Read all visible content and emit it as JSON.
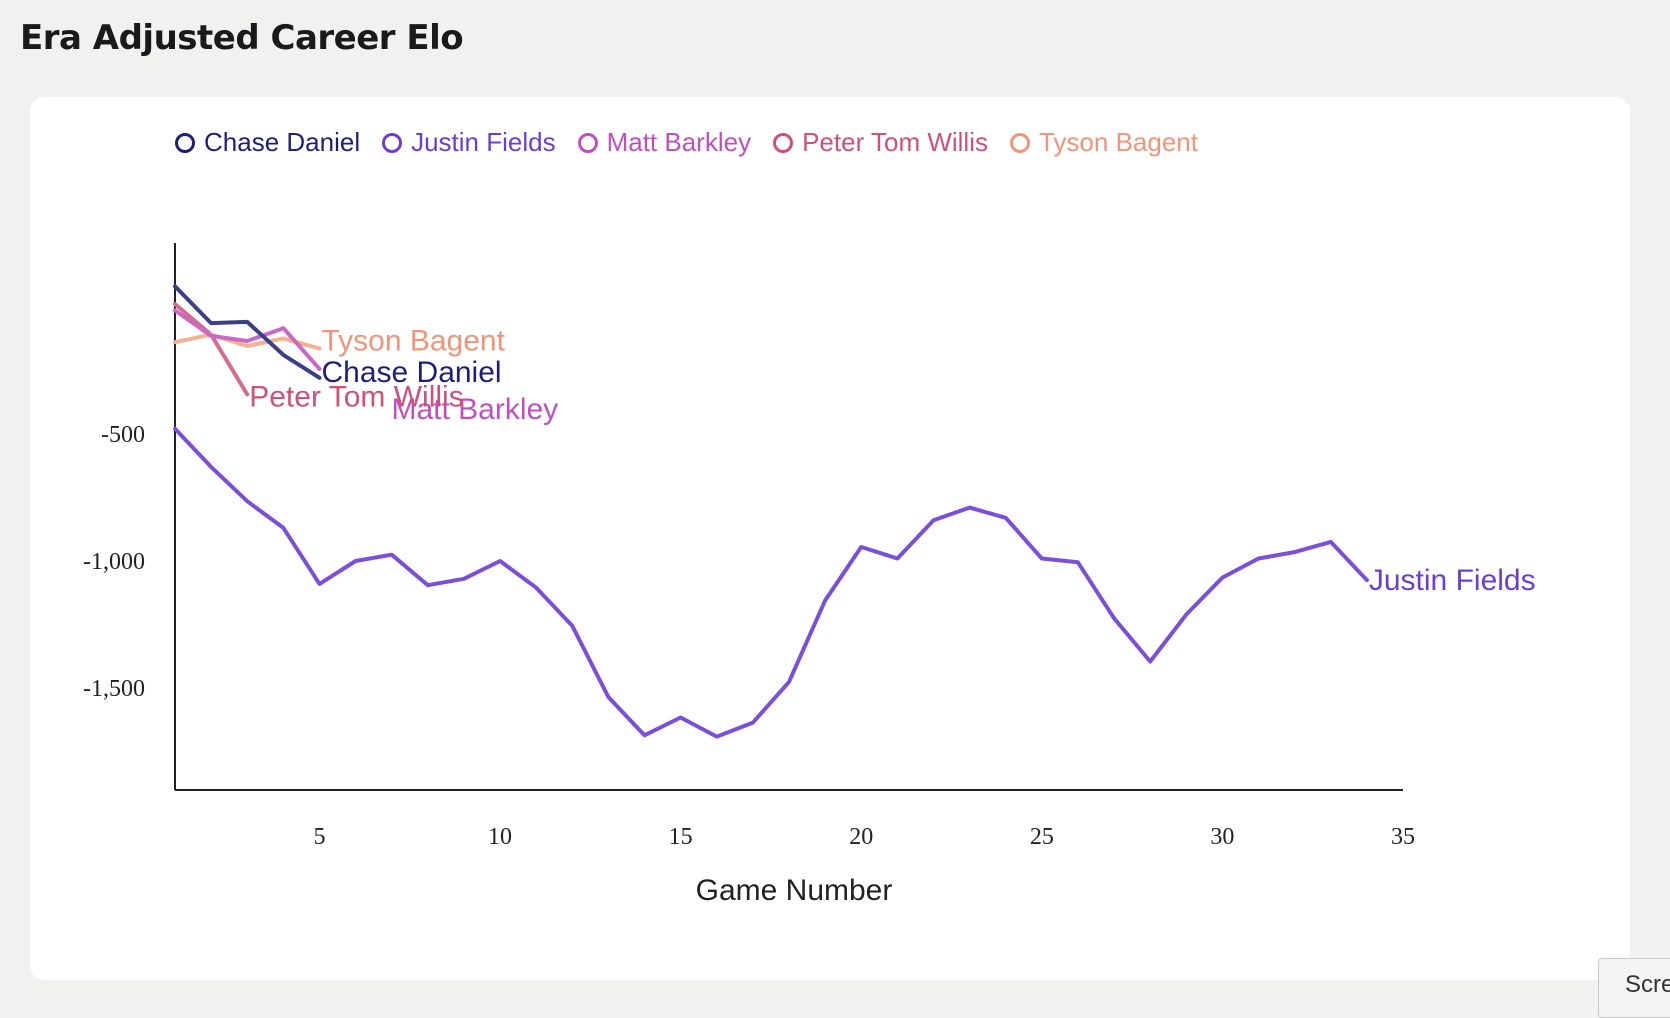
{
  "title": "Era Adjusted Career Elo",
  "corner_tab": {
    "label": "Scre"
  },
  "legend": [
    {
      "name": "Chase Daniel",
      "color": "#1f1f7a"
    },
    {
      "name": "Justin Fields",
      "color": "#6a3fd0"
    },
    {
      "name": "Matt Barkley",
      "color": "#c04fc0"
    },
    {
      "name": "Peter Tom Willis",
      "color": "#d0507a"
    },
    {
      "name": "Tyson Bagent",
      "color": "#f0957a"
    }
  ],
  "chart_data": {
    "type": "line",
    "title": "Era Adjusted Career Elo",
    "xlabel": "Game Number",
    "ylabel": "",
    "xlim": [
      1,
      35
    ],
    "ylim": [
      -1900,
      250
    ],
    "x_ticks": [
      5,
      10,
      15,
      20,
      25,
      30,
      35
    ],
    "x_tick_labels": [
      "5",
      "10",
      "15",
      "20",
      "25",
      "30",
      "35"
    ],
    "y_ticks": [
      -500,
      -1000,
      -1500
    ],
    "y_tick_labels": [
      "-500",
      "-1,000",
      "-1,500"
    ],
    "grid": false,
    "legend_position": "top",
    "series": [
      {
        "name": "Chase Daniel",
        "color": "#3b3f86",
        "x": [
          1,
          2,
          3,
          4,
          5
        ],
        "y": [
          80,
          -65,
          -60,
          -190,
          -280
        ]
      },
      {
        "name": "Justin Fields",
        "color": "#7b4fd8",
        "x": [
          1,
          2,
          3,
          4,
          5,
          6,
          7,
          8,
          9,
          10,
          11,
          12,
          13,
          14,
          15,
          16,
          17,
          18,
          19,
          20,
          21,
          22,
          23,
          24,
          25,
          26,
          27,
          28,
          29,
          30,
          31,
          32,
          33,
          34
        ],
        "y": [
          -480,
          -630,
          -765,
          -870,
          -1090,
          -1000,
          -975,
          -1095,
          -1070,
          -1000,
          -1105,
          -1255,
          -1535,
          -1685,
          -1615,
          -1690,
          -1635,
          -1475,
          -1155,
          -945,
          -990,
          -840,
          -790,
          -830,
          -990,
          -1005,
          -1225,
          -1395,
          -1210,
          -1065,
          -990,
          -965,
          -925,
          -1075
        ]
      },
      {
        "name": "Matt Barkley",
        "color": "#c869c8",
        "x": [
          1,
          2,
          3,
          4,
          5
        ],
        "y": [
          -15,
          -115,
          -135,
          -85,
          -245
        ]
      },
      {
        "name": "Peter Tom Willis",
        "color": "#d86a8a",
        "x": [
          1,
          2,
          3
        ],
        "y": [
          10,
          -110,
          -345
        ]
      },
      {
        "name": "Tyson Bagent",
        "color": "#f5b08e",
        "x": [
          1,
          2,
          3,
          4,
          5
        ],
        "y": [
          -140,
          -110,
          -155,
          -125,
          -165
        ]
      }
    ],
    "end_labels": [
      {
        "series": "Tyson Bagent",
        "text": "Tyson Bagent",
        "color": "#f0957a"
      },
      {
        "series": "Chase Daniel",
        "text": "Chase Daniel",
        "color": "#1f1f7a"
      },
      {
        "series": "Matt Barkley",
        "text": "Matt Barkley",
        "color": "#c04fc0"
      },
      {
        "series": "Peter Tom Willis",
        "text": "Peter Tom Willis",
        "color": "#d0507a"
      },
      {
        "series": "Justin Fields",
        "text": "Justin Fields",
        "color": "#6a3fd0"
      }
    ]
  }
}
